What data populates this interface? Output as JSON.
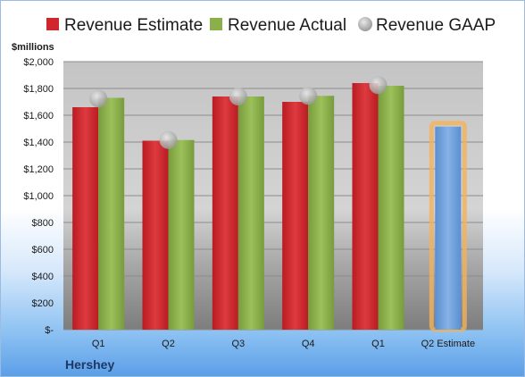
{
  "company": "Hershey",
  "colors": {
    "estimate": "#d0262d",
    "actual": "#8bb04a",
    "gaap": "#b5b5b5",
    "projection": "#6e9fd8",
    "projection_glow": "#f2b25a"
  },
  "chart_data": {
    "type": "bar",
    "unit_label": "$millions",
    "categories": [
      "Q1",
      "Q2",
      "Q3",
      "Q4",
      "Q1",
      "Q2 Estimate"
    ],
    "series": [
      {
        "name": "Revenue Estimate",
        "values": [
          1660,
          1410,
          1740,
          1700,
          1840,
          1515
        ]
      },
      {
        "name": "Revenue Actual",
        "values": [
          1730,
          1415,
          1740,
          1745,
          1820,
          null
        ]
      },
      {
        "name": "Revenue GAAP",
        "values": [
          1725,
          1415,
          1740,
          1745,
          1825,
          null
        ]
      }
    ],
    "yticks": [
      "$-",
      "$200",
      "$400",
      "$600",
      "$800",
      "$1,000",
      "$1,200",
      "$1,400",
      "$1,600",
      "$1,800",
      "$2,000"
    ],
    "ylim": [
      0,
      2000
    ],
    "grid": true,
    "legend_position": "top",
    "projection_category_index": 5
  }
}
